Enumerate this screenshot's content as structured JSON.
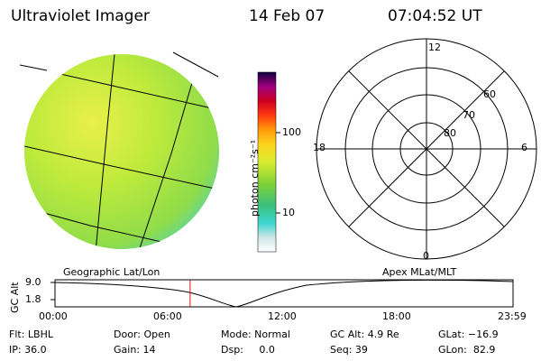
{
  "header": {
    "title": "Ultraviolet Imager",
    "date": "14 Feb 07",
    "time": "07:04:52 UT"
  },
  "colorbar": {
    "unit_label": "photon cm⁻²s⁻¹",
    "ticks": [
      "100",
      "10"
    ]
  },
  "polar_plot": {
    "mlt_labels": {
      "top": "12",
      "left": "18",
      "right": "6",
      "bottom": "0"
    },
    "lat_labels": [
      "60",
      "70",
      "80"
    ]
  },
  "timeline": {
    "left_title": "Geographic Lat/Lon",
    "right_title": "Apex MLat/MLT",
    "y_axis_label": "GC Alt",
    "y_ticks": [
      "9.0",
      "1.8"
    ],
    "x_ticks": [
      "00:00",
      "06:00",
      "12:00",
      "18:00",
      "23:59"
    ],
    "current_time_fraction": 0.295
  },
  "status": {
    "filter": "Flt: LBHL",
    "door": "Door: Open",
    "mode": "Mode: Normal",
    "gc_alt": "GC Alt: 4.9 Re",
    "glat": "GLat: −16.9",
    "ip": "IP: 36.0",
    "gain": "Gain: 14",
    "dsp": "Dsp:     0.0",
    "seq": "Seq: 39",
    "glon": "GLon:  82.9"
  }
}
